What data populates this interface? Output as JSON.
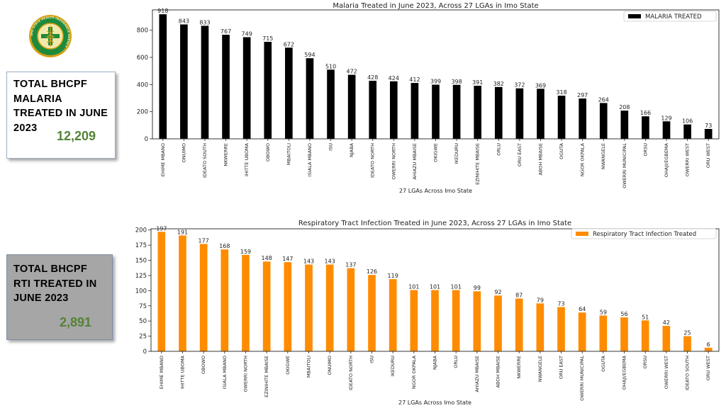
{
  "logo": {
    "text": "IMO STATE HEALTH INSURANCE AGENCY",
    "colors": {
      "ring": "#1e8a3c",
      "inner": "#f2e8a8",
      "gold": "#d4a017",
      "cross": "#1e8a3c"
    }
  },
  "cards": {
    "malaria": {
      "label": "TOTAL BHCPF MALARIA TREATED IN JUNE 2023",
      "value": "12,209"
    },
    "rti": {
      "label": "TOTAL BHCPF RTI TREATED IN JUNE 2023",
      "value": "2,891"
    }
  },
  "chart_data": [
    {
      "type": "bar",
      "title": "Malaria Treated in June 2023, Across 27 LGAs in Imo State",
      "xlabel": "27 LGAs Across Imo State",
      "ylabel": "",
      "ylim": [
        0,
        950
      ],
      "yticks": [
        0,
        200,
        400,
        600,
        800
      ],
      "legend": "top-right",
      "color": "#000000",
      "categories": [
        "EHIME MBANO",
        "ONUIMO",
        "IDEATO SOUTH",
        "NKWERRE",
        "IHITTE UBOMA",
        "OBOWO",
        "MBAITOLI",
        "ISIALA MBANO",
        "ISU",
        "NJABA",
        "IDEATO NORTH",
        "OWERRI NORTH",
        "AHIAZU MBAISE",
        "OKIGWE",
        "IKEDURU",
        "EZINIHITE MBAISE",
        "ORLU",
        "ORU EAST",
        "ABOH MBAISE",
        "OGUTA",
        "NGOR OKPALA",
        "NWANGELE",
        "OWERRI MUNICIPAL",
        "ORSU",
        "OHAJI/EGBEMA",
        "OWERRI WEST",
        "ORU WEST"
      ],
      "series": [
        {
          "name": "MALARIA TREATED",
          "values": [
            918,
            843,
            833,
            767,
            749,
            715,
            672,
            594,
            510,
            472,
            428,
            424,
            412,
            399,
            398,
            391,
            382,
            372,
            369,
            318,
            297,
            264,
            208,
            166,
            129,
            106,
            73
          ]
        }
      ]
    },
    {
      "type": "bar",
      "title": "Respiratory Tract Infection Treated in June 2023, Across 27 LGAs in Imo State",
      "xlabel": "27 LGAs Across Imo State",
      "ylabel": "",
      "ylim": [
        0,
        202
      ],
      "yticks": [
        0,
        25,
        50,
        75,
        100,
        125,
        150,
        175,
        200
      ],
      "legend": "top-right",
      "color": "#ff8c00",
      "categories": [
        "EHIME MBANO",
        "IHITTE UBOMA",
        "OBOWO",
        "ISIALA MBANO",
        "OWERRI NORTH",
        "EZINIHITE MBAISE",
        "OKIGWE",
        "MBAITOLI",
        "ONUIMO",
        "IDEATO NORTH",
        "ISU",
        "IKEDURU",
        "NGOR OKPALA",
        "NJABA",
        "ORLU",
        "AHIAZU MBAISE",
        "ABOH MBAISE",
        "NKWERRE",
        "NWANGELE",
        "ORU EAST",
        "OWERRI MUNICIPAL",
        "OGUTA",
        "OHAJI/EGBEMA",
        "ORSU",
        "OWERRI WEST",
        "IDEATO SOUTH",
        "ORU WEST"
      ],
      "series": [
        {
          "name": "Respiratory Tract Infection Treated",
          "values": [
            197,
            191,
            177,
            168,
            159,
            148,
            147,
            143,
            143,
            137,
            126,
            119,
            101,
            101,
            101,
            99,
            92,
            87,
            79,
            73,
            64,
            59,
            56,
            51,
            42,
            25,
            6
          ]
        }
      ]
    }
  ]
}
